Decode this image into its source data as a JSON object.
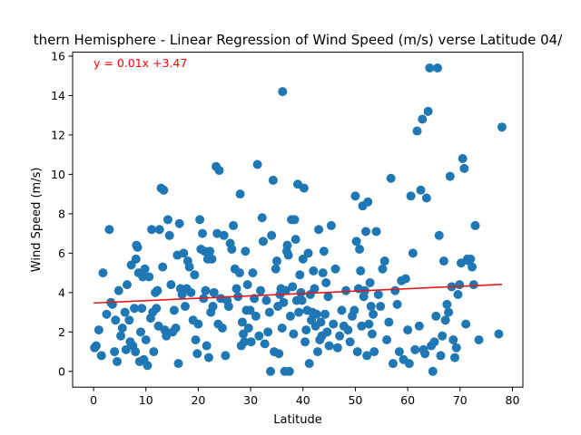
{
  "colors": {
    "point": "#1f77b4",
    "regression_line": "#e31a1c",
    "annotation": "#ff0000",
    "axis": "#000000",
    "background": "#ffffff"
  },
  "chart_data": {
    "type": "scatter",
    "title": "thern Hemisphere - Linear Regression of Wind Speed (m/s) verse Latitude 04/",
    "xlabel": "Latitude",
    "ylabel": "Wind Speed (m/s)",
    "xlim": [
      -4,
      82
    ],
    "ylim": [
      -0.8,
      16.2
    ],
    "xticks": [
      0,
      10,
      20,
      30,
      40,
      50,
      60,
      70,
      80
    ],
    "yticks": [
      0,
      2,
      4,
      6,
      8,
      10,
      12,
      14,
      16
    ],
    "xtick_labels": [
      "0",
      "10",
      "20",
      "30",
      "40",
      "50",
      "60",
      "70",
      "80"
    ],
    "ytick_labels": [
      "0",
      "2",
      "4",
      "6",
      "8",
      "10",
      "12",
      "14",
      "16"
    ],
    "grid": false,
    "legend": "none",
    "annotation": "y = 0.01x +3.47",
    "regression": {
      "slope": 0.0121,
      "intercept": 3.47,
      "x_range": [
        0.0,
        78.0
      ]
    },
    "series": [
      {
        "points": [
          [
            0.2,
            1.2
          ],
          [
            0.5,
            1.3
          ],
          [
            1.0,
            2.1
          ],
          [
            1.5,
            0.8
          ],
          [
            1.8,
            5.0
          ],
          [
            2.5,
            2.9
          ],
          [
            3.0,
            7.2
          ],
          [
            3.3,
            3.5
          ],
          [
            3.6,
            3.4
          ],
          [
            4.0,
            1.0
          ],
          [
            4.2,
            2.6
          ],
          [
            4.5,
            0.5
          ],
          [
            4.8,
            4.1
          ],
          [
            5.2,
            1.8
          ],
          [
            5.5,
            2.2
          ],
          [
            6.0,
            3.0
          ],
          [
            6.2,
            1.1
          ],
          [
            6.4,
            4.4
          ],
          [
            6.8,
            2.6
          ],
          [
            7.0,
            1.5
          ],
          [
            7.2,
            5.4
          ],
          [
            7.5,
            1.3
          ],
          [
            7.8,
            3.2
          ],
          [
            8.0,
            1.0
          ],
          [
            8.1,
            5.7
          ],
          [
            8.2,
            6.4
          ],
          [
            8.4,
            6.3
          ],
          [
            8.6,
            5.0
          ],
          [
            8.8,
            0.5
          ],
          [
            9.0,
            2.0
          ],
          [
            9.2,
            3.2
          ],
          [
            9.4,
            4.8
          ],
          [
            9.6,
            0.6
          ],
          [
            9.8,
            5.2
          ],
          [
            10.0,
            1.6
          ],
          [
            10.3,
            0.3
          ],
          [
            10.6,
            4.8
          ],
          [
            10.9,
            2.7
          ],
          [
            11.1,
            7.2
          ],
          [
            11.3,
            3.0
          ],
          [
            11.5,
            1.0
          ],
          [
            11.8,
            4.0
          ],
          [
            12.0,
            3.2
          ],
          [
            12.2,
            4.1
          ],
          [
            12.4,
            2.3
          ],
          [
            12.6,
            7.2
          ],
          [
            12.9,
            9.3
          ],
          [
            13.2,
            5.3
          ],
          [
            13.4,
            9.2
          ],
          [
            13.6,
            2.1
          ],
          [
            13.9,
            1.8
          ],
          [
            14.2,
            7.7
          ],
          [
            14.5,
            6.9
          ],
          [
            14.8,
            4.4
          ],
          [
            15.1,
            2.0
          ],
          [
            15.4,
            3.1
          ],
          [
            15.7,
            2.2
          ],
          [
            16.0,
            5.9
          ],
          [
            16.2,
            0.4
          ],
          [
            16.4,
            7.5
          ],
          [
            16.6,
            4.2
          ],
          [
            16.9,
            3.9
          ],
          [
            17.2,
            6.0
          ],
          [
            17.5,
            3.3
          ],
          [
            17.8,
            4.2
          ],
          [
            18.0,
            5.6
          ],
          [
            18.3,
            5.3
          ],
          [
            18.6,
            4.0
          ],
          [
            19.0,
            2.6
          ],
          [
            19.3,
            4.9
          ],
          [
            19.5,
            1.6
          ],
          [
            19.8,
            0.9
          ],
          [
            20.0,
            2.4
          ],
          [
            20.3,
            7.7
          ],
          [
            20.5,
            6.2
          ],
          [
            20.8,
            7.0
          ],
          [
            21.0,
            3.7
          ],
          [
            21.2,
            6.1
          ],
          [
            21.4,
            4.1
          ],
          [
            21.6,
            1.3
          ],
          [
            21.8,
            5.7
          ],
          [
            22.0,
            0.7
          ],
          [
            22.2,
            6.1
          ],
          [
            22.4,
            3.0
          ],
          [
            22.6,
            5.7
          ],
          [
            22.8,
            3.3
          ],
          [
            23.0,
            4.0
          ],
          [
            23.4,
            10.4
          ],
          [
            23.6,
            7.0
          ],
          [
            23.8,
            2.4
          ],
          [
            24.0,
            10.2
          ],
          [
            24.3,
            3.7
          ],
          [
            24.6,
            2.2
          ],
          [
            24.9,
            6.9
          ],
          [
            25.2,
            0.8
          ],
          [
            25.5,
            3.6
          ],
          [
            25.8,
            3.3
          ],
          [
            26.1,
            6.5
          ],
          [
            26.4,
            6.2
          ],
          [
            26.7,
            7.4
          ],
          [
            27.0,
            5.2
          ],
          [
            27.3,
            4.2
          ],
          [
            27.6,
            3.8
          ],
          [
            27.9,
            5.0
          ],
          [
            28.0,
            9.0
          ],
          [
            28.2,
            1.3
          ],
          [
            28.4,
            2.5
          ],
          [
            28.6,
            1.9
          ],
          [
            28.8,
            1.5
          ],
          [
            29.0,
            6.1
          ],
          [
            29.2,
            3.1
          ],
          [
            29.4,
            4.4
          ],
          [
            29.6,
            2.2
          ],
          [
            29.9,
            3.1
          ],
          [
            30.1,
            1.5
          ],
          [
            30.4,
            5.0
          ],
          [
            30.7,
            3.7
          ],
          [
            31.0,
            2.8
          ],
          [
            31.3,
            10.5
          ],
          [
            31.6,
            1.8
          ],
          [
            31.9,
            4.1
          ],
          [
            32.2,
            7.8
          ],
          [
            32.4,
            6.6
          ],
          [
            32.7,
            1.4
          ],
          [
            33.0,
            3.6
          ],
          [
            33.3,
            2.0
          ],
          [
            33.6,
            3.0
          ],
          [
            33.8,
            0.0
          ],
          [
            34.0,
            6.9
          ],
          [
            34.3,
            9.7
          ],
          [
            34.5,
            1.0
          ],
          [
            34.8,
            5.2
          ],
          [
            35.0,
            5.6
          ],
          [
            35.2,
            3.3
          ],
          [
            35.4,
            0.9
          ],
          [
            35.6,
            3.9
          ],
          [
            35.8,
            4.2
          ],
          [
            36.0,
            2.2
          ],
          [
            36.1,
            14.2
          ],
          [
            36.3,
            3.5
          ],
          [
            36.5,
            0.0
          ],
          [
            36.7,
            4.1
          ],
          [
            36.9,
            6.1
          ],
          [
            37.0,
            6.4
          ],
          [
            37.2,
            5.9
          ],
          [
            37.4,
            0.0
          ],
          [
            37.6,
            2.8
          ],
          [
            37.8,
            7.7
          ],
          [
            38.0,
            4.3
          ],
          [
            38.2,
            1.9
          ],
          [
            38.4,
            7.7
          ],
          [
            38.6,
            6.7
          ],
          [
            38.8,
            3.6
          ],
          [
            39.0,
            9.5
          ],
          [
            39.2,
            3.0
          ],
          [
            39.4,
            4.9
          ],
          [
            39.6,
            4.0
          ],
          [
            39.8,
            3.6
          ],
          [
            40.0,
            5.7
          ],
          [
            40.2,
            9.3
          ],
          [
            40.4,
            1.5
          ],
          [
            40.6,
            2.1
          ],
          [
            40.8,
            3.1
          ],
          [
            41.0,
            6.0
          ],
          [
            41.2,
            0.4
          ],
          [
            41.4,
            3.9
          ],
          [
            41.6,
            2.6
          ],
          [
            41.8,
            3.0
          ],
          [
            42.0,
            5.1
          ],
          [
            42.2,
            4.2
          ],
          [
            42.4,
            2.3
          ],
          [
            42.6,
            2.9
          ],
          [
            42.8,
            1.0
          ],
          [
            43.0,
            7.2
          ],
          [
            43.2,
            1.6
          ],
          [
            43.4,
            2.5
          ],
          [
            43.6,
            1.8
          ],
          [
            43.8,
            5.0
          ],
          [
            44.0,
            6.1
          ],
          [
            44.2,
            2.9
          ],
          [
            44.4,
            4.5
          ],
          [
            44.6,
            2.0
          ],
          [
            44.8,
            3.8
          ],
          [
            45.0,
            1.3
          ],
          [
            45.4,
            7.4
          ],
          [
            45.8,
            2.4
          ],
          [
            46.2,
            5.2
          ],
          [
            46.6,
            1.2
          ],
          [
            47.0,
            1.8
          ],
          [
            47.4,
            3.1
          ],
          [
            47.8,
            2.3
          ],
          [
            48.2,
            4.1
          ],
          [
            48.6,
            2.1
          ],
          [
            49.0,
            1.5
          ],
          [
            49.4,
            2.8
          ],
          [
            49.8,
            3.1
          ],
          [
            50.0,
            8.9
          ],
          [
            50.2,
            6.6
          ],
          [
            50.4,
            1.0
          ],
          [
            50.6,
            4.2
          ],
          [
            50.8,
            6.2
          ],
          [
            51.0,
            5.1
          ],
          [
            51.2,
            2.3
          ],
          [
            51.4,
            8.4
          ],
          [
            51.6,
            3.8
          ],
          [
            51.8,
            4.1
          ],
          [
            52.0,
            7.1
          ],
          [
            52.2,
            0.8
          ],
          [
            52.4,
            8.6
          ],
          [
            52.6,
            2.4
          ],
          [
            52.8,
            4.5
          ],
          [
            53.0,
            3.3
          ],
          [
            53.2,
            1.9
          ],
          [
            53.4,
            2.9
          ],
          [
            53.6,
            1.0
          ],
          [
            54.0,
            7.1
          ],
          [
            54.4,
            3.9
          ],
          [
            54.8,
            3.3
          ],
          [
            55.2,
            5.2
          ],
          [
            55.6,
            5.6
          ],
          [
            56.0,
            1.6
          ],
          [
            56.4,
            2.5
          ],
          [
            56.8,
            9.8
          ],
          [
            57.2,
            0.4
          ],
          [
            57.6,
            4.1
          ],
          [
            58.0,
            3.4
          ],
          [
            58.4,
            1.0
          ],
          [
            58.8,
            4.6
          ],
          [
            59.2,
            0.6
          ],
          [
            59.6,
            4.7
          ],
          [
            60.0,
            2.1
          ],
          [
            60.3,
            0.4
          ],
          [
            60.6,
            8.9
          ],
          [
            61.0,
            6.0
          ],
          [
            61.4,
            1.1
          ],
          [
            61.8,
            12.2
          ],
          [
            62.2,
            2.3
          ],
          [
            62.5,
            9.2
          ],
          [
            62.8,
            12.8
          ],
          [
            63.0,
            1.1
          ],
          [
            63.3,
            0.9
          ],
          [
            63.6,
            8.8
          ],
          [
            63.9,
            13.2
          ],
          [
            64.2,
            15.4
          ],
          [
            64.5,
            1.3
          ],
          [
            64.8,
            0.0
          ],
          [
            65.1,
            1.5
          ],
          [
            65.4,
            2.8
          ],
          [
            65.7,
            15.4
          ],
          [
            66.0,
            6.9
          ],
          [
            66.3,
            0.8
          ],
          [
            66.6,
            1.8
          ],
          [
            66.9,
            5.6
          ],
          [
            67.2,
            2.6
          ],
          [
            67.5,
            3.4
          ],
          [
            67.8,
            3.0
          ],
          [
            68.1,
            9.9
          ],
          [
            68.4,
            4.3
          ],
          [
            68.7,
            1.6
          ],
          [
            69.0,
            0.7
          ],
          [
            69.3,
            1.2
          ],
          [
            69.6,
            3.9
          ],
          [
            69.9,
            4.4
          ],
          [
            70.2,
            5.5
          ],
          [
            70.5,
            10.8
          ],
          [
            70.8,
            10.3
          ],
          [
            71.1,
            2.4
          ],
          [
            71.4,
            5.7
          ],
          [
            71.7,
            5.6
          ],
          [
            72.0,
            5.7
          ],
          [
            72.3,
            5.3
          ],
          [
            72.6,
            4.4
          ],
          [
            72.9,
            7.4
          ],
          [
            73.6,
            1.6
          ],
          [
            77.4,
            1.9
          ],
          [
            78.0,
            12.4
          ]
        ]
      }
    ]
  }
}
